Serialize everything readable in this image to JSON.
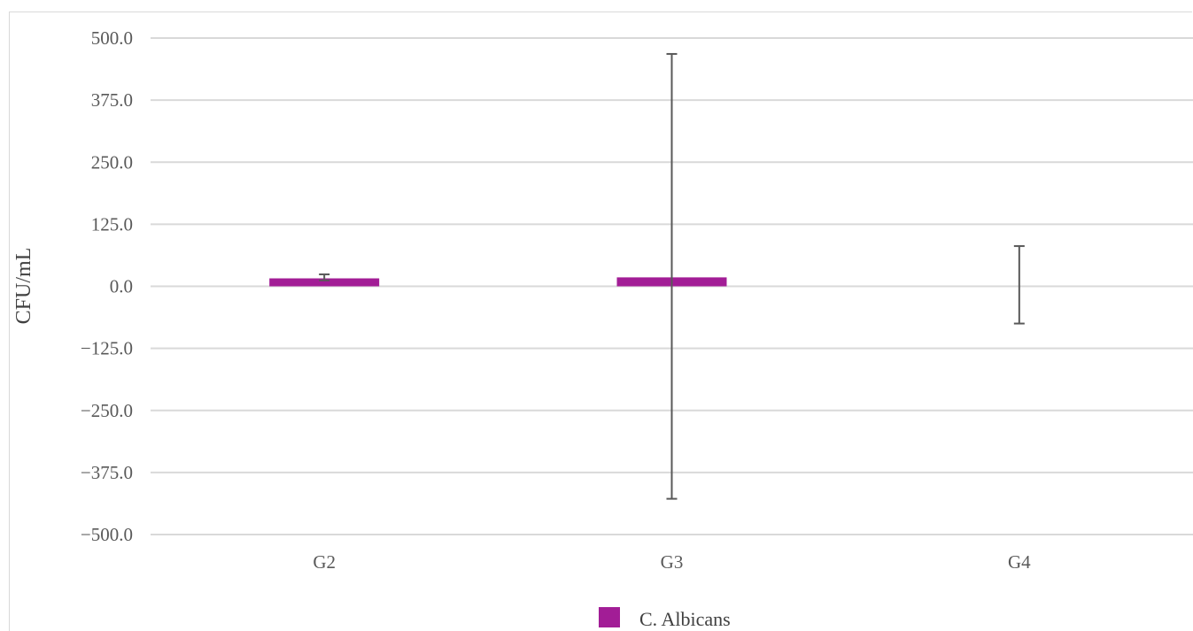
{
  "chart_data": {
    "type": "bar",
    "title": "",
    "xlabel": "",
    "ylabel": "CFU/mL",
    "ylim": [
      -500,
      500
    ],
    "yticks": [
      "500.0",
      "375.0",
      "250.0",
      "125.0",
      "0.0",
      "−125.0",
      "−250.0",
      "−375.0",
      "−500.0"
    ],
    "ytick_values": [
      500,
      375,
      250,
      125,
      0,
      -125,
      -250,
      -375,
      -500
    ],
    "categories": [
      "G2",
      "G3",
      "G4"
    ],
    "grid": true,
    "legend_position": "bottom",
    "series": [
      {
        "name": "C. Albicans",
        "color": "#a21d96",
        "values": [
          16,
          18,
          0
        ],
        "error_low": [
          12,
          -428,
          -75
        ],
        "error_high": [
          24,
          468,
          81
        ]
      }
    ]
  }
}
